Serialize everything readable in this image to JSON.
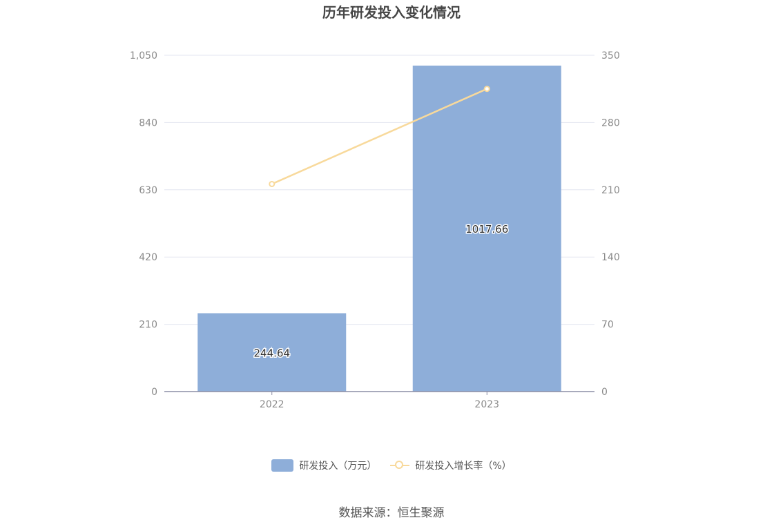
{
  "title": "历年研发投入变化情况",
  "source_text": "数据来源：恒生聚源",
  "chart_data": {
    "type": "bar",
    "categories": [
      "2022",
      "2023"
    ],
    "series": [
      {
        "name": "研发投入（万元）",
        "kind": "bar",
        "axis": "left",
        "color": "#8eaed9",
        "values": [
          244.64,
          1017.66
        ],
        "labels": [
          "244.64",
          "1017.66"
        ]
      },
      {
        "name": "研发投入增长率（%）",
        "kind": "line",
        "axis": "right",
        "color": "#f8d99b",
        "values": [
          216,
          315
        ]
      }
    ],
    "y_left": {
      "min": 0,
      "max": 1050,
      "ticks": [
        0,
        210,
        420,
        630,
        840,
        1050
      ],
      "tick_labels": [
        "0",
        "210",
        "420",
        "630",
        "840",
        "1,050"
      ]
    },
    "y_right": {
      "min": 0,
      "max": 350,
      "ticks": [
        0,
        70,
        140,
        210,
        280,
        350
      ],
      "tick_labels": [
        "0",
        "70",
        "140",
        "210",
        "280",
        "350"
      ]
    },
    "grid": true,
    "legend_position": "bottom"
  },
  "colors": {
    "grid": "#e3e6f0",
    "axis": "#8c8ea6",
    "tick_text": "#8a8a8a"
  }
}
